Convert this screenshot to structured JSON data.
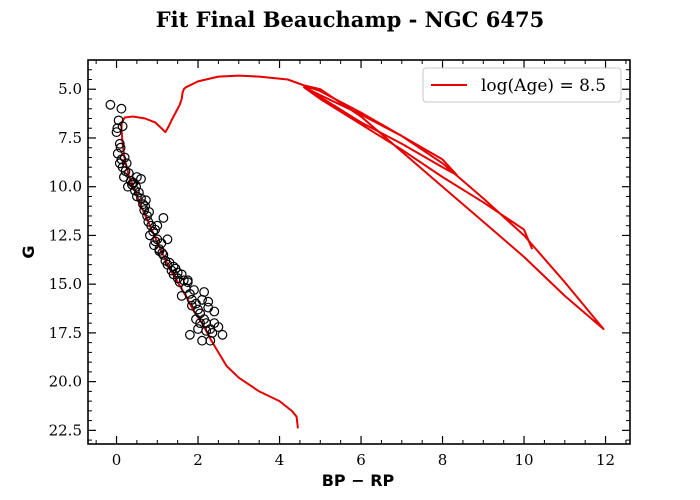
{
  "chart_data": {
    "type": "scatter",
    "title": "Fit Final Beauchamp - NGC 6475",
    "xlabel": "BP − RP",
    "ylabel": "G",
    "xlim": [
      -0.7,
      12.6
    ],
    "ylim": [
      23.2,
      3.5
    ],
    "y_inverted": true,
    "xticks": [
      0,
      2,
      4,
      6,
      8,
      10,
      12
    ],
    "yticks": [
      5.0,
      7.5,
      10.0,
      12.5,
      15.0,
      17.5,
      20.0,
      22.5
    ],
    "xtick_labels": [
      "0",
      "2",
      "4",
      "6",
      "8",
      "10",
      "12"
    ],
    "ytick_labels": [
      "5.0",
      "7.5",
      "10.0",
      "12.5",
      "15.0",
      "17.5",
      "20.0",
      "22.5"
    ],
    "grid": false,
    "legend_position": "top-right",
    "colors": {
      "isochrone": "#e60000",
      "points_edge": "#000000"
    },
    "series": [
      {
        "name": "log(Age) = 8.5",
        "kind": "line",
        "x": [
          4.45,
          4.42,
          4.3,
          4.0,
          3.5,
          3.0,
          2.7,
          2.5,
          2.3,
          2.1,
          1.9,
          1.7,
          1.5,
          1.3,
          1.1,
          0.95,
          0.8,
          0.6,
          0.45,
          0.3,
          0.2,
          0.15,
          0.12,
          0.13,
          0.2,
          0.4,
          0.7,
          0.95,
          1.1,
          1.2,
          1.28,
          1.35,
          1.45,
          1.55,
          1.6,
          1.62,
          1.65,
          1.7,
          2.0,
          2.5,
          3.0,
          3.5,
          4.2,
          5.0,
          6.0,
          7.0,
          8.0,
          9.0,
          10.0,
          11.0,
          11.95,
          11.0,
          10.0,
          9.0,
          8.0,
          7.0,
          6.0,
          5.0,
          4.6,
          5.0,
          6.0,
          7.0,
          8.0,
          8.35,
          8.0,
          7.0,
          6.0,
          5.0,
          4.6,
          5.0,
          6.0,
          7.0,
          8.0,
          9.0,
          10.0,
          10.2
        ],
        "y": [
          22.4,
          21.8,
          21.5,
          21.0,
          20.5,
          19.8,
          19.2,
          18.5,
          17.8,
          17.0,
          16.4,
          15.6,
          14.9,
          14.2,
          13.3,
          12.6,
          11.9,
          11.0,
          10.2,
          9.4,
          8.6,
          7.8,
          7.0,
          6.7,
          6.45,
          6.4,
          6.5,
          6.7,
          7.0,
          7.2,
          6.9,
          6.6,
          6.2,
          5.8,
          5.5,
          5.2,
          5.0,
          4.9,
          4.6,
          4.35,
          4.3,
          4.35,
          4.5,
          5.1,
          6.2,
          7.4,
          8.8,
          10.6,
          12.5,
          14.9,
          17.3,
          15.6,
          13.6,
          11.8,
          10.0,
          8.2,
          6.4,
          5.0,
          4.8,
          5.4,
          6.7,
          7.8,
          9.0,
          9.4,
          8.6,
          7.4,
          6.3,
          5.3,
          4.9,
          5.5,
          6.8,
          8.1,
          9.5,
          10.8,
          12.2,
          13.2
        ]
      },
      {
        "kind": "scatter",
        "x": [
          -0.15,
          0.12,
          0.05,
          0.02,
          0.15,
          0.0,
          0.08,
          0.1,
          0.03,
          0.12,
          0.08,
          0.15,
          0.2,
          0.25,
          0.22,
          0.18,
          0.3,
          0.35,
          0.28,
          0.4,
          0.45,
          0.38,
          0.5,
          0.55,
          0.6,
          0.48,
          0.65,
          0.72,
          0.68,
          0.75,
          0.8,
          0.78,
          0.85,
          0.9,
          0.82,
          0.95,
          1.0,
          0.92,
          1.05,
          1.1,
          1.15,
          1.2,
          1.12,
          1.25,
          1.3,
          1.35,
          1.4,
          1.45,
          1.5,
          1.55,
          1.6,
          1.65,
          1.7,
          1.75,
          1.8,
          1.85,
          1.9,
          1.95,
          2.0,
          2.05,
          2.1,
          2.15,
          2.2,
          2.25,
          2.3,
          2.35,
          2.4,
          2.5,
          2.6,
          1.8,
          2.0,
          2.1,
          2.2,
          2.3,
          1.6,
          1.75,
          1.85,
          1.95,
          2.05,
          2.25,
          2.4,
          2.15,
          1.25,
          0.95,
          1.05,
          1.0,
          1.15,
          1.4,
          1.5,
          0.7,
          0.6,
          0.5,
          0.42
        ],
        "y": [
          5.8,
          6.0,
          6.6,
          7.0,
          6.9,
          7.2,
          7.8,
          8.0,
          8.3,
          8.6,
          8.8,
          9.0,
          8.5,
          8.8,
          9.2,
          9.5,
          9.3,
          9.7,
          10.0,
          9.8,
          10.2,
          9.9,
          10.5,
          10.3,
          9.6,
          10.0,
          10.9,
          10.7,
          11.2,
          11.5,
          11.3,
          11.8,
          12.0,
          12.3,
          12.5,
          12.2,
          12.7,
          13.0,
          13.2,
          12.9,
          13.5,
          13.8,
          13.4,
          14.0,
          13.9,
          14.3,
          14.5,
          14.2,
          14.7,
          14.9,
          14.5,
          14.8,
          15.2,
          14.8,
          15.5,
          15.8,
          15.3,
          16.0,
          16.3,
          16.5,
          15.8,
          16.8,
          17.0,
          16.2,
          17.3,
          17.5,
          17.0,
          17.2,
          17.6,
          17.6,
          17.3,
          17.9,
          17.4,
          17.9,
          15.6,
          14.9,
          16.1,
          16.8,
          17.0,
          15.9,
          16.4,
          15.4,
          12.7,
          12.8,
          13.3,
          12.0,
          11.6,
          14.1,
          14.4,
          11.0,
          10.6,
          9.5,
          9.8
        ]
      }
    ]
  }
}
